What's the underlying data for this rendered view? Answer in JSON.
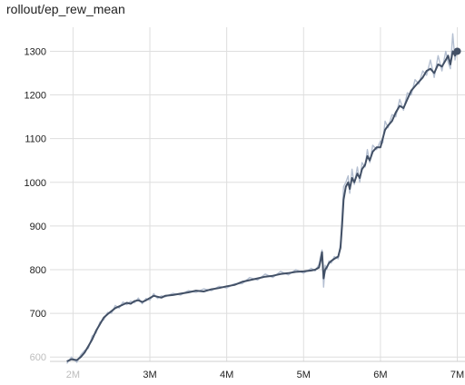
{
  "chart_data": {
    "type": "line",
    "title": "rollout/ep_rew_mean",
    "xlabel": "",
    "ylabel": "",
    "x_ticks": [
      {
        "value": 2,
        "label": "2M",
        "faded": true
      },
      {
        "value": 3,
        "label": "3M",
        "faded": false
      },
      {
        "value": 4,
        "label": "4M",
        "faded": false
      },
      {
        "value": 5,
        "label": "5M",
        "faded": false
      },
      {
        "value": 6,
        "label": "6M",
        "faded": false
      },
      {
        "value": 7,
        "label": "7M",
        "faded": false
      }
    ],
    "y_ticks": [
      {
        "value": 600,
        "label": "600",
        "faded": true
      },
      {
        "value": 700,
        "label": "700",
        "faded": false
      },
      {
        "value": 800,
        "label": "800",
        "faded": false
      },
      {
        "value": 900,
        "label": "900",
        "faded": false
      },
      {
        "value": 1000,
        "label": "1000",
        "faded": false
      },
      {
        "value": 1100,
        "label": "1100",
        "faded": false
      },
      {
        "value": 1200,
        "label": "1200",
        "faded": false
      },
      {
        "value": 1300,
        "label": "1300",
        "faded": false
      }
    ],
    "x_unit": "M steps",
    "xlim": [
      1.7,
      7.1
    ],
    "ylim": [
      590,
      1355
    ],
    "grid": true,
    "smoothed_color": "#425066",
    "raw_color": "#b4bfd1",
    "series": [
      {
        "values_x": [
          1.92,
          1.98,
          2.05,
          2.1,
          2.15,
          2.2,
          2.25,
          2.3,
          2.35,
          2.4,
          2.45,
          2.5,
          2.55,
          2.6,
          2.65,
          2.7,
          2.75,
          2.8,
          2.85,
          2.9,
          2.95,
          3.0,
          3.05,
          3.1,
          3.15,
          3.2,
          3.3,
          3.4,
          3.5,
          3.6,
          3.7,
          3.8,
          3.9,
          4.0,
          4.1,
          4.2,
          4.3,
          4.4,
          4.5,
          4.6,
          4.7,
          4.8,
          4.9,
          5.0,
          5.1,
          5.15,
          5.2,
          5.22,
          5.24,
          5.26,
          5.28,
          5.3,
          5.33,
          5.36,
          5.4,
          5.45,
          5.48,
          5.5,
          5.52,
          5.55,
          5.58,
          5.6,
          5.63,
          5.66,
          5.7,
          5.73,
          5.76,
          5.8,
          5.83,
          5.86,
          5.9,
          5.95,
          6.0,
          6.03,
          6.06,
          6.1,
          6.15,
          6.2,
          6.25,
          6.3,
          6.35,
          6.4,
          6.45,
          6.5,
          6.55,
          6.6,
          6.65,
          6.7,
          6.75,
          6.8,
          6.85,
          6.88,
          6.91,
          6.94,
          6.97,
          7.0
        ],
        "values_y": [
          590,
          595,
          593,
          600,
          610,
          625,
          640,
          660,
          675,
          690,
          698,
          705,
          712,
          716,
          720,
          724,
          722,
          728,
          730,
          726,
          730,
          735,
          740,
          738,
          736,
          740,
          742,
          745,
          748,
          752,
          750,
          755,
          758,
          762,
          765,
          772,
          776,
          780,
          784,
          786,
          790,
          792,
          795,
          796,
          798,
          800,
          805,
          820,
          840,
          780,
          800,
          805,
          815,
          820,
          825,
          830,
          850,
          900,
          960,
          990,
          1000,
          985,
          1010,
          1000,
          1020,
          1010,
          1030,
          1040,
          1060,
          1050,
          1070,
          1080,
          1080,
          1100,
          1120,
          1130,
          1140,
          1160,
          1175,
          1170,
          1190,
          1210,
          1220,
          1230,
          1240,
          1255,
          1260,
          1250,
          1270,
          1265,
          1280,
          1290,
          1270,
          1300,
          1290,
          1300
        ],
        "raw_x": [
          1.92,
          1.98,
          2.05,
          2.1,
          2.15,
          2.2,
          2.25,
          2.3,
          2.35,
          2.4,
          2.45,
          2.5,
          2.55,
          2.6,
          2.65,
          2.7,
          2.75,
          2.8,
          2.85,
          2.9,
          2.95,
          3.0,
          3.05,
          3.1,
          3.15,
          3.2,
          3.3,
          3.4,
          3.5,
          3.6,
          3.7,
          3.8,
          3.9,
          4.0,
          4.1,
          4.2,
          4.3,
          4.4,
          4.5,
          4.6,
          4.7,
          4.8,
          4.9,
          5.0,
          5.1,
          5.15,
          5.2,
          5.22,
          5.24,
          5.26,
          5.28,
          5.3,
          5.33,
          5.36,
          5.4,
          5.45,
          5.48,
          5.5,
          5.52,
          5.55,
          5.58,
          5.6,
          5.63,
          5.66,
          5.7,
          5.73,
          5.76,
          5.8,
          5.83,
          5.86,
          5.9,
          5.95,
          6.0,
          6.03,
          6.06,
          6.1,
          6.15,
          6.2,
          6.25,
          6.3,
          6.35,
          6.4,
          6.45,
          6.5,
          6.55,
          6.6,
          6.65,
          6.7,
          6.75,
          6.8,
          6.85,
          6.88,
          6.91,
          6.94,
          6.97,
          7.0
        ],
        "raw_y": [
          585,
          600,
          588,
          605,
          615,
          620,
          648,
          655,
          680,
          685,
          702,
          700,
          718,
          712,
          726,
          720,
          728,
          724,
          735,
          722,
          734,
          730,
          745,
          734,
          740,
          738,
          746,
          742,
          752,
          748,
          756,
          752,
          762,
          758,
          768,
          768,
          782,
          776,
          790,
          782,
          796,
          788,
          800,
          792,
          803,
          797,
          812,
          830,
          845,
          760,
          810,
          800,
          820,
          815,
          830,
          825,
          860,
          920,
          990,
          1000,
          1015,
          975,
          1030,
          995,
          1035,
          1000,
          1045,
          1035,
          1075,
          1045,
          1085,
          1075,
          1095,
          1090,
          1140,
          1125,
          1155,
          1150,
          1190,
          1165,
          1205,
          1200,
          1235,
          1225,
          1255,
          1245,
          1280,
          1240,
          1290,
          1255,
          1300,
          1275,
          1260,
          1340,
          1280,
          1305
        ]
      }
    ]
  }
}
